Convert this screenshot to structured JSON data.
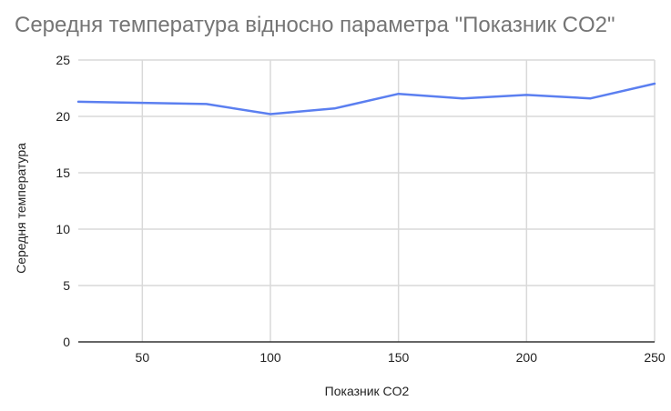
{
  "chart_data": {
    "type": "line",
    "title": "Середня температура відносно параметра \"Показник CO2\"",
    "xlabel": "Показник CO2",
    "ylabel": "Середня температура",
    "xlim": [
      25,
      250
    ],
    "ylim": [
      0,
      25
    ],
    "x_ticks": [
      50,
      100,
      150,
      200,
      250
    ],
    "y_ticks": [
      0,
      5,
      10,
      15,
      20,
      25
    ],
    "grid": true,
    "legend": "none",
    "series": [
      {
        "x": [
          25,
          50,
          75,
          100,
          125,
          150,
          175,
          200,
          225,
          250
        ],
        "values": [
          21.3,
          21.2,
          21.1,
          20.2,
          20.7,
          22.0,
          21.6,
          21.9,
          21.6,
          22.9
        ],
        "color": "#5b7ff0"
      }
    ]
  }
}
